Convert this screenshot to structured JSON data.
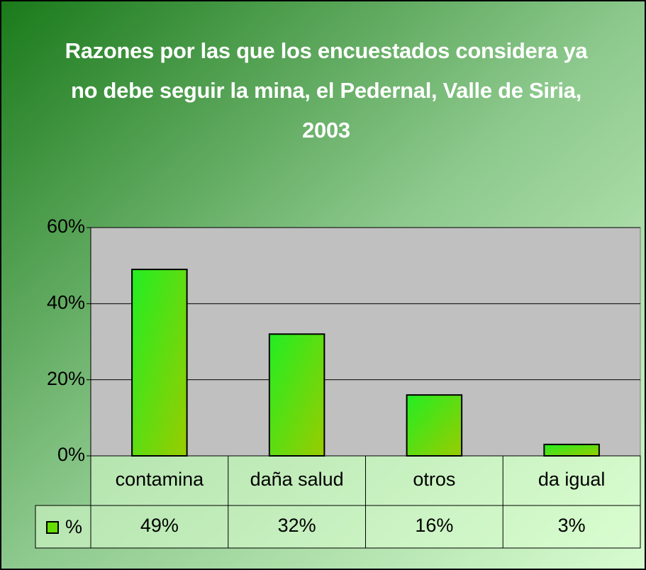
{
  "chart_data": {
    "type": "bar",
    "title": "Razones por las que los encuestados considera ya no debe seguir la mina, el Pedernal, Valle de Siria, 2003",
    "categories": [
      "contamina",
      "daña salud",
      "otros",
      "da igual"
    ],
    "series": [
      {
        "name": "%",
        "color": "#66dd00",
        "values": [
          49,
          32,
          16,
          3
        ],
        "value_labels": [
          "49%",
          "32%",
          "16%",
          "3%"
        ]
      }
    ],
    "ylim": [
      0,
      60
    ],
    "yticks": [
      {
        "value": 0,
        "label": "0%"
      },
      {
        "value": 20,
        "label": "20%"
      },
      {
        "value": 40,
        "label": "40%"
      },
      {
        "value": 60,
        "label": "60%"
      }
    ],
    "grid": true
  }
}
